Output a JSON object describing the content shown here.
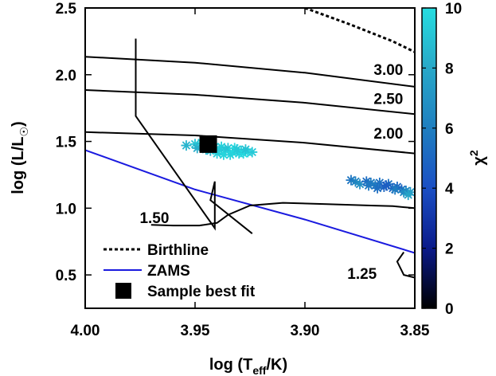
{
  "chart_data": {
    "type": "scatter",
    "title": "",
    "xlabel": {
      "main": "log (T",
      "sub": "eff",
      "tail": "/K)"
    },
    "ylabel": {
      "main": "log (L/L",
      "sub": "☉",
      "tail": ")"
    },
    "xlim": [
      4.0,
      3.85
    ],
    "ylim": [
      0.25,
      2.5
    ],
    "x_reversed": true,
    "xticks": [
      "4.00",
      "3.95",
      "3.90",
      "3.85"
    ],
    "xtick_values": [
      4.0,
      3.95,
      3.9,
      3.85
    ],
    "yticks": [
      "0.5",
      "1.0",
      "1.5",
      "2.0",
      "2.5"
    ],
    "ytick_values": [
      0.5,
      1.0,
      1.5,
      2.0,
      2.5
    ],
    "colorbar": {
      "label": "χ",
      "label_sup": "2",
      "range": [
        0,
        10
      ],
      "ticks": [
        "0",
        "2",
        "4",
        "6",
        "8",
        "10"
      ],
      "tick_values": [
        0,
        2,
        4,
        6,
        8,
        10
      ],
      "colors": [
        "#000000",
        "#0a1a8a",
        "#1b4fc4",
        "#1f7fc0",
        "#28a8c8",
        "#26dde0"
      ]
    },
    "legend": {
      "position": "bottom-left",
      "entries": [
        {
          "label": "Birthline",
          "style": "dotted",
          "color": "#000000"
        },
        {
          "label": "ZAMS",
          "style": "solid",
          "color": "#1a1adf"
        },
        {
          "label": "Sample best fit",
          "style": "square",
          "color": "#000000"
        }
      ]
    },
    "mass_labels": [
      {
        "text": "3.00",
        "x": 3.862,
        "y": 2.0
      },
      {
        "text": "2.50",
        "x": 3.862,
        "y": 1.78
      },
      {
        "text": "2.00",
        "x": 3.862,
        "y": 1.52
      },
      {
        "text": "1.50",
        "x": 3.9685,
        "y": 0.89
      },
      {
        "text": "1.25",
        "x": 3.874,
        "y": 0.47
      }
    ],
    "birthline": {
      "color": "#000000",
      "x": [
        3.9,
        3.88,
        3.86,
        3.85
      ],
      "y": [
        2.5,
        2.38,
        2.25,
        2.17
      ]
    },
    "zams": {
      "color": "#1a1adf",
      "x": [
        4.0,
        3.95,
        3.9,
        3.85
      ],
      "y": [
        1.435,
        1.14,
        0.915,
        0.665
      ]
    },
    "tracks": [
      {
        "mass": "3.00",
        "x": [
          4.0,
          3.95,
          3.9,
          3.85
        ],
        "y": [
          2.135,
          2.09,
          2.015,
          1.91
        ]
      },
      {
        "mass": "2.50",
        "x": [
          4.0,
          3.95,
          3.9,
          3.85
        ],
        "y": [
          1.885,
          1.85,
          1.79,
          1.705
        ]
      },
      {
        "mass": "2.00",
        "x": [
          4.0,
          3.95,
          3.9,
          3.85
        ],
        "y": [
          1.57,
          1.545,
          1.49,
          1.41
        ]
      },
      {
        "mass": "1.50",
        "x": [
          3.97,
          3.96,
          3.948,
          3.94,
          3.935,
          3.925,
          3.91,
          3.89,
          3.87,
          3.86,
          3.85
        ],
        "y": [
          0.875,
          0.87,
          0.87,
          0.89,
          0.95,
          1.02,
          1.04,
          1.03,
          1.02,
          1.015,
          1.0
        ]
      },
      {
        "mass": "1.25",
        "x": [
          3.855,
          3.858,
          3.855,
          3.85
        ],
        "y": [
          0.67,
          0.6,
          0.5,
          0.48
        ]
      }
    ],
    "polygon": {
      "x": [
        3.977,
        3.977,
        3.941,
        3.941,
        3.943,
        3.924
      ],
      "y": [
        2.27,
        1.69,
        0.85,
        1.2,
        1.06,
        0.81
      ]
    },
    "best_fit": {
      "x": 3.944,
      "y": 1.48
    },
    "samples": {
      "x": [
        3.954,
        3.95,
        3.947,
        3.944,
        3.941,
        3.938,
        3.935,
        3.932,
        3.929,
        3.926,
        3.949,
        3.945,
        3.939,
        3.936,
        3.933,
        3.93,
        3.943,
        3.94,
        3.937,
        3.931,
        3.928,
        3.934,
        3.927,
        3.924,
        3.879,
        3.877,
        3.875,
        3.872,
        3.87,
        3.868,
        3.866,
        3.864,
        3.862,
        3.86,
        3.858,
        3.856,
        3.854,
        3.852,
        3.871,
        3.867,
        3.863,
        3.859,
        3.855,
        3.853
      ],
      "y": [
        1.47,
        1.48,
        1.49,
        1.47,
        1.46,
        1.46,
        1.45,
        1.45,
        1.43,
        1.42,
        1.45,
        1.44,
        1.44,
        1.43,
        1.42,
        1.41,
        1.43,
        1.41,
        1.4,
        1.44,
        1.41,
        1.4,
        1.44,
        1.42,
        1.21,
        1.2,
        1.18,
        1.2,
        1.19,
        1.17,
        1.19,
        1.16,
        1.18,
        1.15,
        1.16,
        1.14,
        1.13,
        1.12,
        1.17,
        1.15,
        1.17,
        1.14,
        1.12,
        1.1
      ],
      "chi2": [
        8.5,
        9.0,
        9.5,
        8.8,
        9.2,
        9.6,
        9.0,
        9.8,
        9.4,
        9.7,
        8.2,
        8.9,
        9.3,
        9.1,
        9.9,
        9.5,
        8.6,
        9.4,
        9.7,
        9.2,
        9.8,
        9.6,
        9.0,
        9.3,
        5.6,
        6.2,
        6.8,
        5.2,
        5.8,
        6.0,
        5.4,
        5.0,
        5.5,
        4.8,
        5.1,
        4.9,
        6.3,
        7.2,
        5.7,
        5.3,
        4.6,
        5.9,
        6.6,
        7.8
      ]
    }
  }
}
